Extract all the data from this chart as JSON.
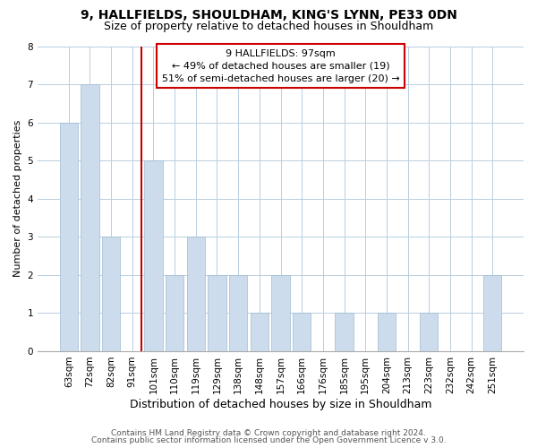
{
  "title": "9, HALLFIELDS, SHOULDHAM, KING'S LYNN, PE33 0DN",
  "subtitle": "Size of property relative to detached houses in Shouldham",
  "xlabel": "Distribution of detached houses by size in Shouldham",
  "ylabel": "Number of detached properties",
  "categories": [
    "63sqm",
    "72sqm",
    "82sqm",
    "91sqm",
    "101sqm",
    "110sqm",
    "119sqm",
    "129sqm",
    "138sqm",
    "148sqm",
    "157sqm",
    "166sqm",
    "176sqm",
    "185sqm",
    "195sqm",
    "204sqm",
    "213sqm",
    "223sqm",
    "232sqm",
    "242sqm",
    "251sqm"
  ],
  "values": [
    6,
    7,
    3,
    0,
    5,
    2,
    3,
    2,
    2,
    1,
    2,
    1,
    0,
    1,
    0,
    1,
    0,
    1,
    0,
    0,
    2
  ],
  "bar_color": "#ccdcec",
  "vline_index": 3,
  "vline_color": "#cc0000",
  "ylim": [
    0,
    8
  ],
  "yticks": [
    0,
    1,
    2,
    3,
    4,
    5,
    6,
    7,
    8
  ],
  "annotation_title": "9 HALLFIELDS: 97sqm",
  "annotation_line1": "← 49% of detached houses are smaller (19)",
  "annotation_line2": "51% of semi-detached houses are larger (20) →",
  "annotation_box_color": "#ffffff",
  "annotation_box_edge": "#cc0000",
  "footer1": "Contains HM Land Registry data © Crown copyright and database right 2024.",
  "footer2": "Contains public sector information licensed under the Open Government Licence v 3.0.",
  "bg_color": "#ffffff",
  "grid_color": "#b8cfe0",
  "title_fontsize": 10,
  "subtitle_fontsize": 9,
  "xlabel_fontsize": 9,
  "ylabel_fontsize": 8,
  "tick_fontsize": 7.5,
  "annot_fontsize": 8,
  "footer_fontsize": 6.5
}
